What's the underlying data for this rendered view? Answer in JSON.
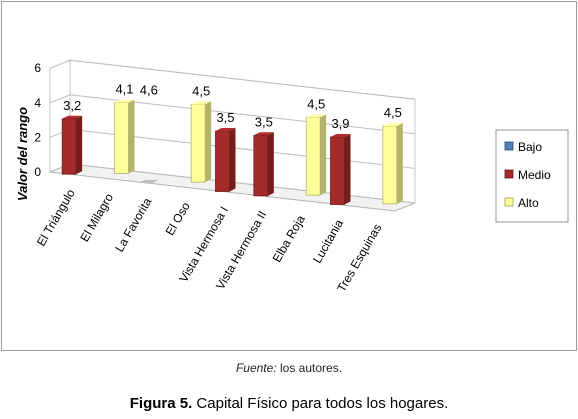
{
  "chart_data": {
    "type": "bar",
    "ylabel": "Valor del rango",
    "ylim": [
      0,
      6
    ],
    "yticks": [
      0,
      2,
      4,
      6
    ],
    "categories": [
      "El Triángulo",
      "El Milagro",
      "La Favorita",
      "El Oso",
      "Vista Hermosa I",
      "Vista Hermosa II",
      "Elba Roja",
      "Lucitania",
      "Tres Esquinas"
    ],
    "series": [
      {
        "name": "Bajo",
        "color": "#4f81bd",
        "values": [
          null,
          null,
          null,
          null,
          null,
          null,
          null,
          null,
          null
        ]
      },
      {
        "name": "Medio",
        "color": "#a52a2a",
        "values": [
          3.2,
          null,
          null,
          null,
          3.5,
          3.5,
          null,
          3.9,
          null
        ]
      },
      {
        "name": "Alto",
        "color": "#ffff99",
        "values": [
          null,
          4.1,
          null,
          4.5,
          null,
          null,
          4.5,
          null,
          4.5
        ]
      }
    ],
    "value_labels": [
      "3,2",
      "4,1",
      "4,6",
      "4,5",
      "3,5",
      "3,5",
      "4,5",
      "3,9",
      "4,5"
    ],
    "legend_position": "right"
  },
  "source": {
    "label": "Fuente:",
    "text": " los autores."
  },
  "caption": {
    "label": "Figura 5.",
    "text": " Capital Físico para todos los hogares."
  }
}
